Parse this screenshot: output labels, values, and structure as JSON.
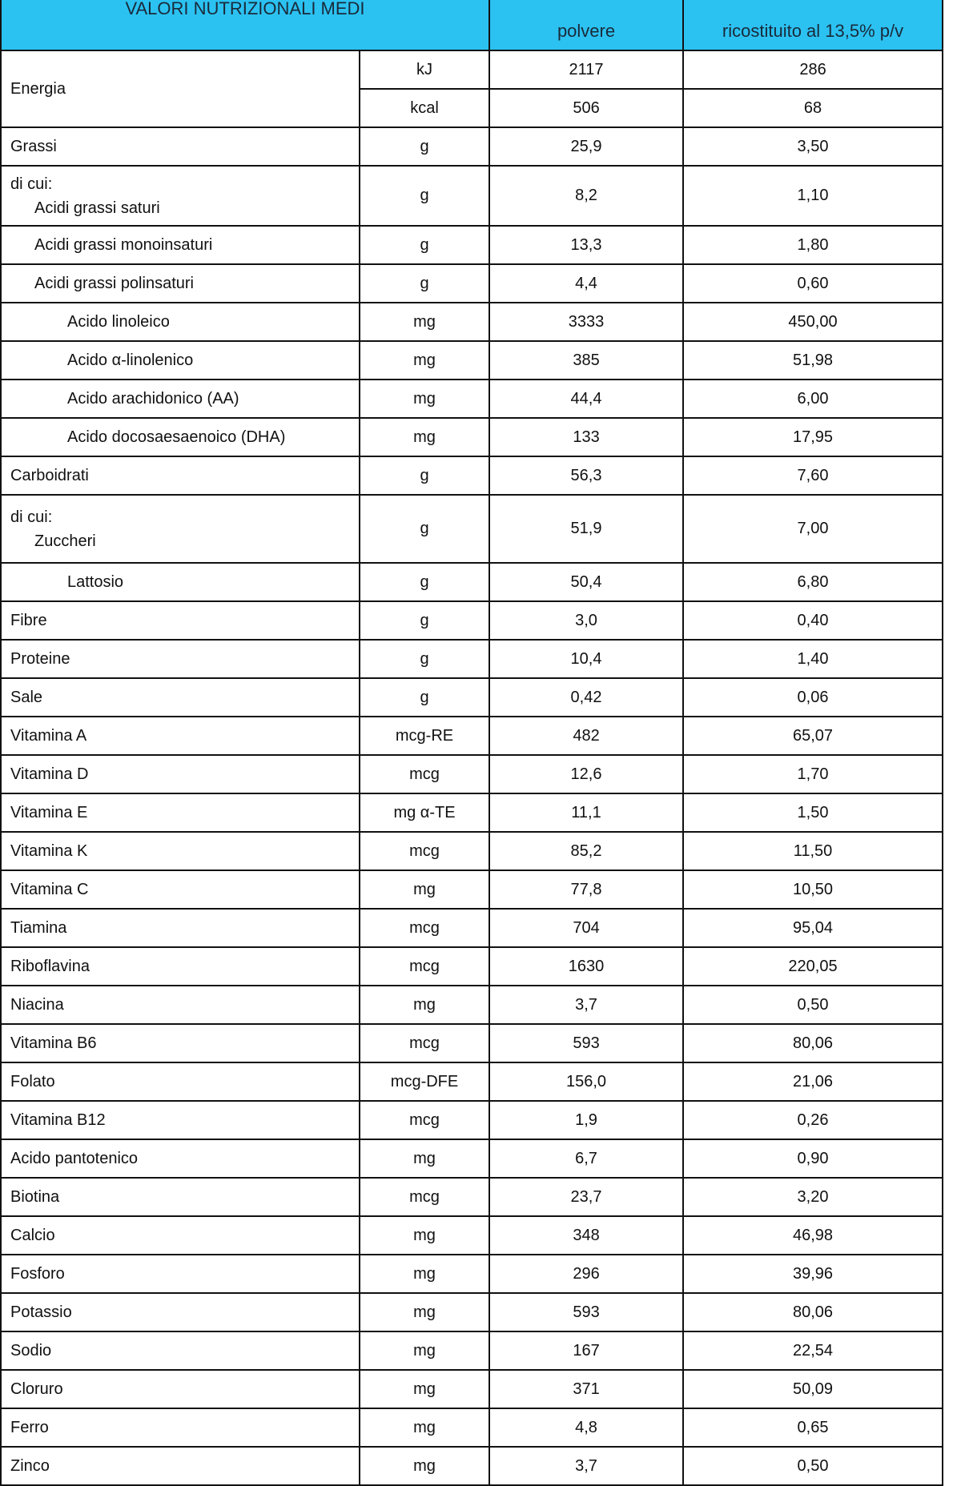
{
  "header": {
    "title": "VALORI NUTRIZIONALI MEDI",
    "col_powder": "polvere",
    "col_reconstituted": "ricostituito al 13,5% p/v"
  },
  "colors": {
    "header_bg": "#2bc2f2",
    "border": "#111111"
  },
  "energy": {
    "name": "Energia",
    "rows": [
      {
        "unit": "kJ",
        "powder": "2117",
        "reconstituted": "286"
      },
      {
        "unit": "kcal",
        "powder": "506",
        "reconstituted": "68"
      }
    ]
  },
  "rows": [
    {
      "name": "Grassi",
      "unit": "g",
      "powder": "25,9",
      "reconstituted": "3,50",
      "indent": 0
    },
    {
      "prefix": "di cui:",
      "name": "Acidi grassi saturi",
      "unit": "g",
      "powder": "8,2",
      "reconstituted": "1,10",
      "indent": 0,
      "tall": 1
    },
    {
      "name": "Acidi grassi monoinsaturi",
      "unit": "g",
      "powder": "13,3",
      "reconstituted": "1,80",
      "indent": 1
    },
    {
      "name": "Acidi grassi polinsaturi",
      "unit": "g",
      "powder": "4,4",
      "reconstituted": "0,60",
      "indent": 1
    },
    {
      "name": "Acido linoleico",
      "unit": "mg",
      "powder": "3333",
      "reconstituted": "450,00",
      "indent": 2
    },
    {
      "name": "Acido α-linolenico",
      "unit": "mg",
      "powder": "385",
      "reconstituted": "51,98",
      "indent": 2
    },
    {
      "name": "Acido arachidonico (AA)",
      "unit": "mg",
      "powder": "44,4",
      "reconstituted": "6,00",
      "indent": 2
    },
    {
      "name": "Acido docosaesaenoico (DHA)",
      "unit": "mg",
      "powder": "133",
      "reconstituted": "17,95",
      "indent": 2
    },
    {
      "name": "Carboidrati",
      "unit": "g",
      "powder": "56,3",
      "reconstituted": "7,60",
      "indent": 0
    },
    {
      "prefix": "di cui:",
      "name": "Zuccheri",
      "unit": "g",
      "powder": "51,9",
      "reconstituted": "7,00",
      "indent": 0,
      "tall": 2
    },
    {
      "name": "Lattosio",
      "unit": "g",
      "powder": "50,4",
      "reconstituted": "6,80",
      "indent": 2
    },
    {
      "name": "Fibre",
      "unit": "g",
      "powder": "3,0",
      "reconstituted": "0,40",
      "indent": 0
    },
    {
      "name": "Proteine",
      "unit": "g",
      "powder": "10,4",
      "reconstituted": "1,40",
      "indent": 0
    },
    {
      "name": "Sale",
      "unit": "g",
      "powder": "0,42",
      "reconstituted": "0,06",
      "indent": 0
    },
    {
      "name": "Vitamina A",
      "unit": "mcg-RE",
      "powder": "482",
      "reconstituted": "65,07",
      "indent": 0
    },
    {
      "name": "Vitamina D",
      "unit": "mcg",
      "powder": "12,6",
      "reconstituted": "1,70",
      "indent": 0
    },
    {
      "name": "Vitamina E",
      "unit": "mg α-TE",
      "powder": "11,1",
      "reconstituted": "1,50",
      "indent": 0
    },
    {
      "name": "Vitamina K",
      "unit": "mcg",
      "powder": "85,2",
      "reconstituted": "11,50",
      "indent": 0
    },
    {
      "name": "Vitamina C",
      "unit": "mg",
      "powder": "77,8",
      "reconstituted": "10,50",
      "indent": 0
    },
    {
      "name": "Tiamina",
      "unit": "mcg",
      "powder": "704",
      "reconstituted": "95,04",
      "indent": 0
    },
    {
      "name": "Riboflavina",
      "unit": "mcg",
      "powder": "1630",
      "reconstituted": "220,05",
      "indent": 0
    },
    {
      "name": "Niacina",
      "unit": "mg",
      "powder": "3,7",
      "reconstituted": "0,50",
      "indent": 0
    },
    {
      "name": "Vitamina B6",
      "unit": "mcg",
      "powder": "593",
      "reconstituted": "80,06",
      "indent": 0
    },
    {
      "name": "Folato",
      "unit": "mcg-DFE",
      "powder": "156,0",
      "reconstituted": "21,06",
      "indent": 0
    },
    {
      "name": "Vitamina B12",
      "unit": "mcg",
      "powder": "1,9",
      "reconstituted": "0,26",
      "indent": 0
    },
    {
      "name": "Acido pantotenico",
      "unit": "mg",
      "powder": "6,7",
      "reconstituted": "0,90",
      "indent": 0
    },
    {
      "name": "Biotina",
      "unit": "mcg",
      "powder": "23,7",
      "reconstituted": "3,20",
      "indent": 0
    },
    {
      "name": "Calcio",
      "unit": "mg",
      "powder": "348",
      "reconstituted": "46,98",
      "indent": 0
    },
    {
      "name": "Fosforo",
      "unit": "mg",
      "powder": "296",
      "reconstituted": "39,96",
      "indent": 0
    },
    {
      "name": "Potassio",
      "unit": "mg",
      "powder": "593",
      "reconstituted": "80,06",
      "indent": 0
    },
    {
      "name": "Sodio",
      "unit": "mg",
      "powder": "167",
      "reconstituted": "22,54",
      "indent": 0
    },
    {
      "name": "Cloruro",
      "unit": "mg",
      "powder": "371",
      "reconstituted": "50,09",
      "indent": 0
    },
    {
      "name": "Ferro",
      "unit": "mg",
      "powder": "4,8",
      "reconstituted": "0,65",
      "indent": 0
    },
    {
      "name": "Zinco",
      "unit": "mg",
      "powder": "3,7",
      "reconstituted": "0,50",
      "indent": 0
    }
  ]
}
